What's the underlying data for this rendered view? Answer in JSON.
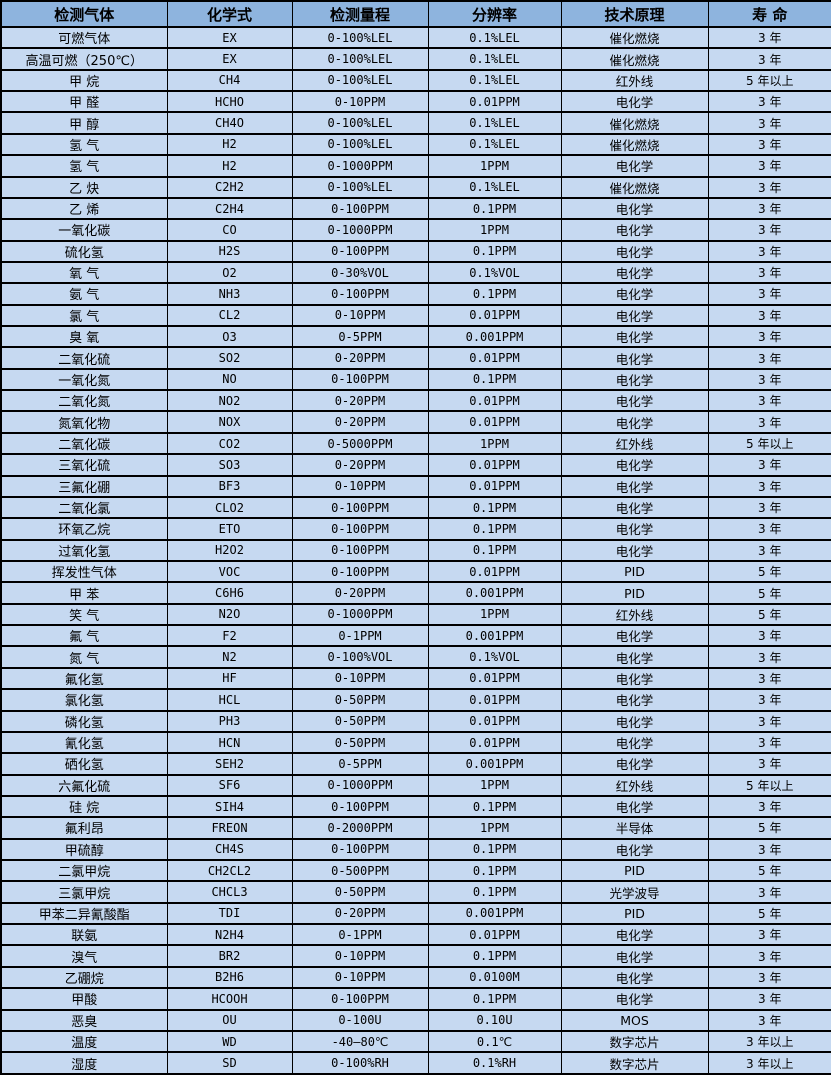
{
  "colors": {
    "header_bg": "#8eb4de",
    "row_bg": "#c6d9f1",
    "border": "#000000",
    "text": "#000000"
  },
  "chart_data": {
    "type": "table",
    "columns": [
      "检测气体",
      "化学式",
      "检测量程",
      "分辨率",
      "技术原理",
      "寿 命"
    ],
    "rows": [
      [
        "可燃气体",
        "EX",
        "0-100%LEL",
        "0.1%LEL",
        "催化燃烧",
        "3 年"
      ],
      [
        "高温可燃（250℃）",
        "EX",
        "0-100%LEL",
        "0.1%LEL",
        "催化燃烧",
        "3 年"
      ],
      [
        "甲 烷",
        "CH4",
        "0-100%LEL",
        "0.1%LEL",
        "红外线",
        "5 年以上"
      ],
      [
        "甲 醛",
        "HCHO",
        "0-10PPM",
        "0.01PPM",
        "电化学",
        "3 年"
      ],
      [
        "甲 醇",
        "CH4O",
        "0-100%LEL",
        "0.1%LEL",
        "催化燃烧",
        "3 年"
      ],
      [
        "氢 气",
        "H2",
        "0-100%LEL",
        "0.1%LEL",
        "催化燃烧",
        "3 年"
      ],
      [
        "氢 气",
        "H2",
        "0-1000PPM",
        "1PPM",
        "电化学",
        "3 年"
      ],
      [
        "乙 炔",
        "C2H2",
        "0-100%LEL",
        "0.1%LEL",
        "催化燃烧",
        "3 年"
      ],
      [
        "乙 烯",
        "C2H4",
        "0-100PPM",
        "0.1PPM",
        "电化学",
        "3 年"
      ],
      [
        "一氧化碳",
        "CO",
        "0-1000PPM",
        "1PPM",
        "电化学",
        "3 年"
      ],
      [
        "硫化氢",
        "H2S",
        "0-100PPM",
        "0.1PPM",
        "电化学",
        "3 年"
      ],
      [
        "氧 气",
        "O2",
        "0-30%VOL",
        "0.1%VOL",
        "电化学",
        "3 年"
      ],
      [
        "氨 气",
        "NH3",
        "0-100PPM",
        "0.1PPM",
        "电化学",
        "3 年"
      ],
      [
        "氯 气",
        "CL2",
        "0-10PPM",
        "0.01PPM",
        "电化学",
        "3 年"
      ],
      [
        "臭 氧",
        "O3",
        "0-5PPM",
        "0.001PPM",
        "电化学",
        "3 年"
      ],
      [
        "二氧化硫",
        "SO2",
        "0-20PPM",
        "0.01PPM",
        "电化学",
        "3 年"
      ],
      [
        "一氧化氮",
        "NO",
        "0-100PPM",
        "0.1PPM",
        "电化学",
        "3 年"
      ],
      [
        "二氧化氮",
        "NO2",
        "0-20PPM",
        "0.01PPM",
        "电化学",
        "3 年"
      ],
      [
        "氮氧化物",
        "NOX",
        "0-20PPM",
        "0.01PPM",
        "电化学",
        "3 年"
      ],
      [
        "二氧化碳",
        "CO2",
        "0-5000PPM",
        "1PPM",
        "红外线",
        "5 年以上"
      ],
      [
        "三氧化硫",
        "SO3",
        "0-20PPM",
        "0.01PPM",
        "电化学",
        "3 年"
      ],
      [
        "三氟化硼",
        "BF3",
        "0-10PPM",
        "0.01PPM",
        "电化学",
        "3 年"
      ],
      [
        "二氧化氯",
        "CLO2",
        "0-100PPM",
        "0.1PPM",
        "电化学",
        "3 年"
      ],
      [
        "环氧乙烷",
        "ETO",
        "0-100PPM",
        "0.1PPM",
        "电化学",
        "3 年"
      ],
      [
        "过氧化氢",
        "H2O2",
        "0-100PPM",
        "0.1PPM",
        "电化学",
        "3 年"
      ],
      [
        "挥发性气体",
        "VOC",
        "0-100PPM",
        "0.01PPM",
        "PID",
        "5 年"
      ],
      [
        "甲 苯",
        "C6H6",
        "0-20PPM",
        "0.001PPM",
        "PID",
        "5 年"
      ],
      [
        "笑 气",
        "N2O",
        "0-1000PPM",
        "1PPM",
        "红外线",
        "5 年"
      ],
      [
        "氟 气",
        "F2",
        "0-1PPM",
        "0.001PPM",
        "电化学",
        "3 年"
      ],
      [
        "氮 气",
        "N2",
        "0-100%VOL",
        "0.1%VOL",
        "电化学",
        "3 年"
      ],
      [
        "氟化氢",
        "HF",
        "0-10PPM",
        "0.01PPM",
        "电化学",
        "3 年"
      ],
      [
        "氯化氢",
        "HCL",
        "0-50PPM",
        "0.01PPM",
        "电化学",
        "3 年"
      ],
      [
        "磷化氢",
        "PH3",
        "0-50PPM",
        "0.01PPM",
        "电化学",
        "3 年"
      ],
      [
        "氰化氢",
        "HCN",
        "0-50PPM",
        "0.01PPM",
        "电化学",
        "3 年"
      ],
      [
        "硒化氢",
        "SEH2",
        "0-5PPM",
        "0.001PPM",
        "电化学",
        "3 年"
      ],
      [
        "六氟化硫",
        "SF6",
        "0-1000PPM",
        "1PPM",
        "红外线",
        "5 年以上"
      ],
      [
        "硅 烷",
        "SIH4",
        "0-100PPM",
        "0.1PPM",
        "电化学",
        "3 年"
      ],
      [
        "氟利昂",
        "FREON",
        "0-2000PPM",
        "1PPM",
        "半导体",
        "5 年"
      ],
      [
        "甲硫醇",
        "CH4S",
        "0-100PPM",
        "0.1PPM",
        "电化学",
        "3 年"
      ],
      [
        "二氯甲烷",
        "CH2CL2",
        "0-500PPM",
        "0.1PPM",
        "PID",
        "5 年"
      ],
      [
        "三氯甲烷",
        "CHCL3",
        "0-50PPM",
        "0.1PPM",
        "光学波导",
        "3 年"
      ],
      [
        "甲苯二异氰酸酯",
        "TDI",
        "0-20PPM",
        "0.001PPM",
        "PID",
        "5 年"
      ],
      [
        "联氨",
        "N2H4",
        "0-1PPM",
        "0.01PPM",
        "电化学",
        "3 年"
      ],
      [
        "溴气",
        "BR2",
        "0-10PPM",
        "0.1PPM",
        "电化学",
        "3 年"
      ],
      [
        "乙硼烷",
        "B2H6",
        "0-10PPM",
        "0.0100M",
        "电化学",
        "3 年"
      ],
      [
        "甲酸",
        "HCOOH",
        "0-100PPM",
        "0.1PPM",
        "电化学",
        "3 年"
      ],
      [
        "恶臭",
        "OU",
        "0-100U",
        "0.10U",
        "MOS",
        "3 年"
      ],
      [
        "温度",
        "WD",
        "-40—80℃",
        "0.1℃",
        "数字芯片",
        "3 年以上"
      ],
      [
        "湿度",
        "SD",
        "0-100%RH",
        "0.1%RH",
        "数字芯片",
        "3 年以上"
      ]
    ]
  }
}
